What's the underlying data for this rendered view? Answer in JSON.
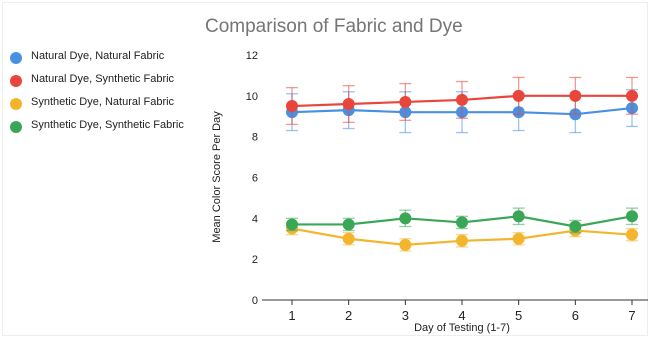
{
  "chart_data": {
    "type": "line",
    "title": "Comparison of Fabric and Dye",
    "xlabel": "Day of Testing (1-7)",
    "ylabel": "Mean Color Score Per Day",
    "categories": [
      "1",
      "2",
      "3",
      "4",
      "5",
      "6",
      "7"
    ],
    "ylim": [
      0,
      12
    ],
    "yticks": [
      "0",
      "2",
      "4",
      "6",
      "8",
      "10",
      "12"
    ],
    "grid": false,
    "legend_position": "left",
    "error_bars": true,
    "series": [
      {
        "name": "Natural Dye, Natural Fabric",
        "color": "#4a90e2",
        "values": [
          9.2,
          9.3,
          9.2,
          9.2,
          9.2,
          9.1,
          9.4
        ],
        "errors": [
          0.9,
          0.9,
          1.0,
          1.0,
          0.9,
          0.9,
          0.9
        ]
      },
      {
        "name": "Natural Dye, Synthetic Fabric",
        "color": "#e8453c",
        "values": [
          9.5,
          9.6,
          9.7,
          9.8,
          10.0,
          10.0,
          10.0
        ],
        "errors": [
          0.9,
          0.9,
          0.9,
          0.9,
          0.9,
          0.9,
          0.9
        ]
      },
      {
        "name": "Synthetic Dye, Natural Fabric",
        "color": "#f4b52e",
        "values": [
          3.5,
          3.0,
          2.7,
          2.9,
          3.0,
          3.4,
          3.2
        ],
        "errors": [
          0.3,
          0.3,
          0.3,
          0.3,
          0.3,
          0.3,
          0.3
        ]
      },
      {
        "name": "Synthetic Dye, Synthetic Fabric",
        "color": "#3aa757",
        "values": [
          3.7,
          3.7,
          4.0,
          3.8,
          4.1,
          3.6,
          4.1
        ],
        "errors": [
          0.3,
          0.3,
          0.4,
          0.3,
          0.4,
          0.3,
          0.4
        ]
      }
    ]
  }
}
